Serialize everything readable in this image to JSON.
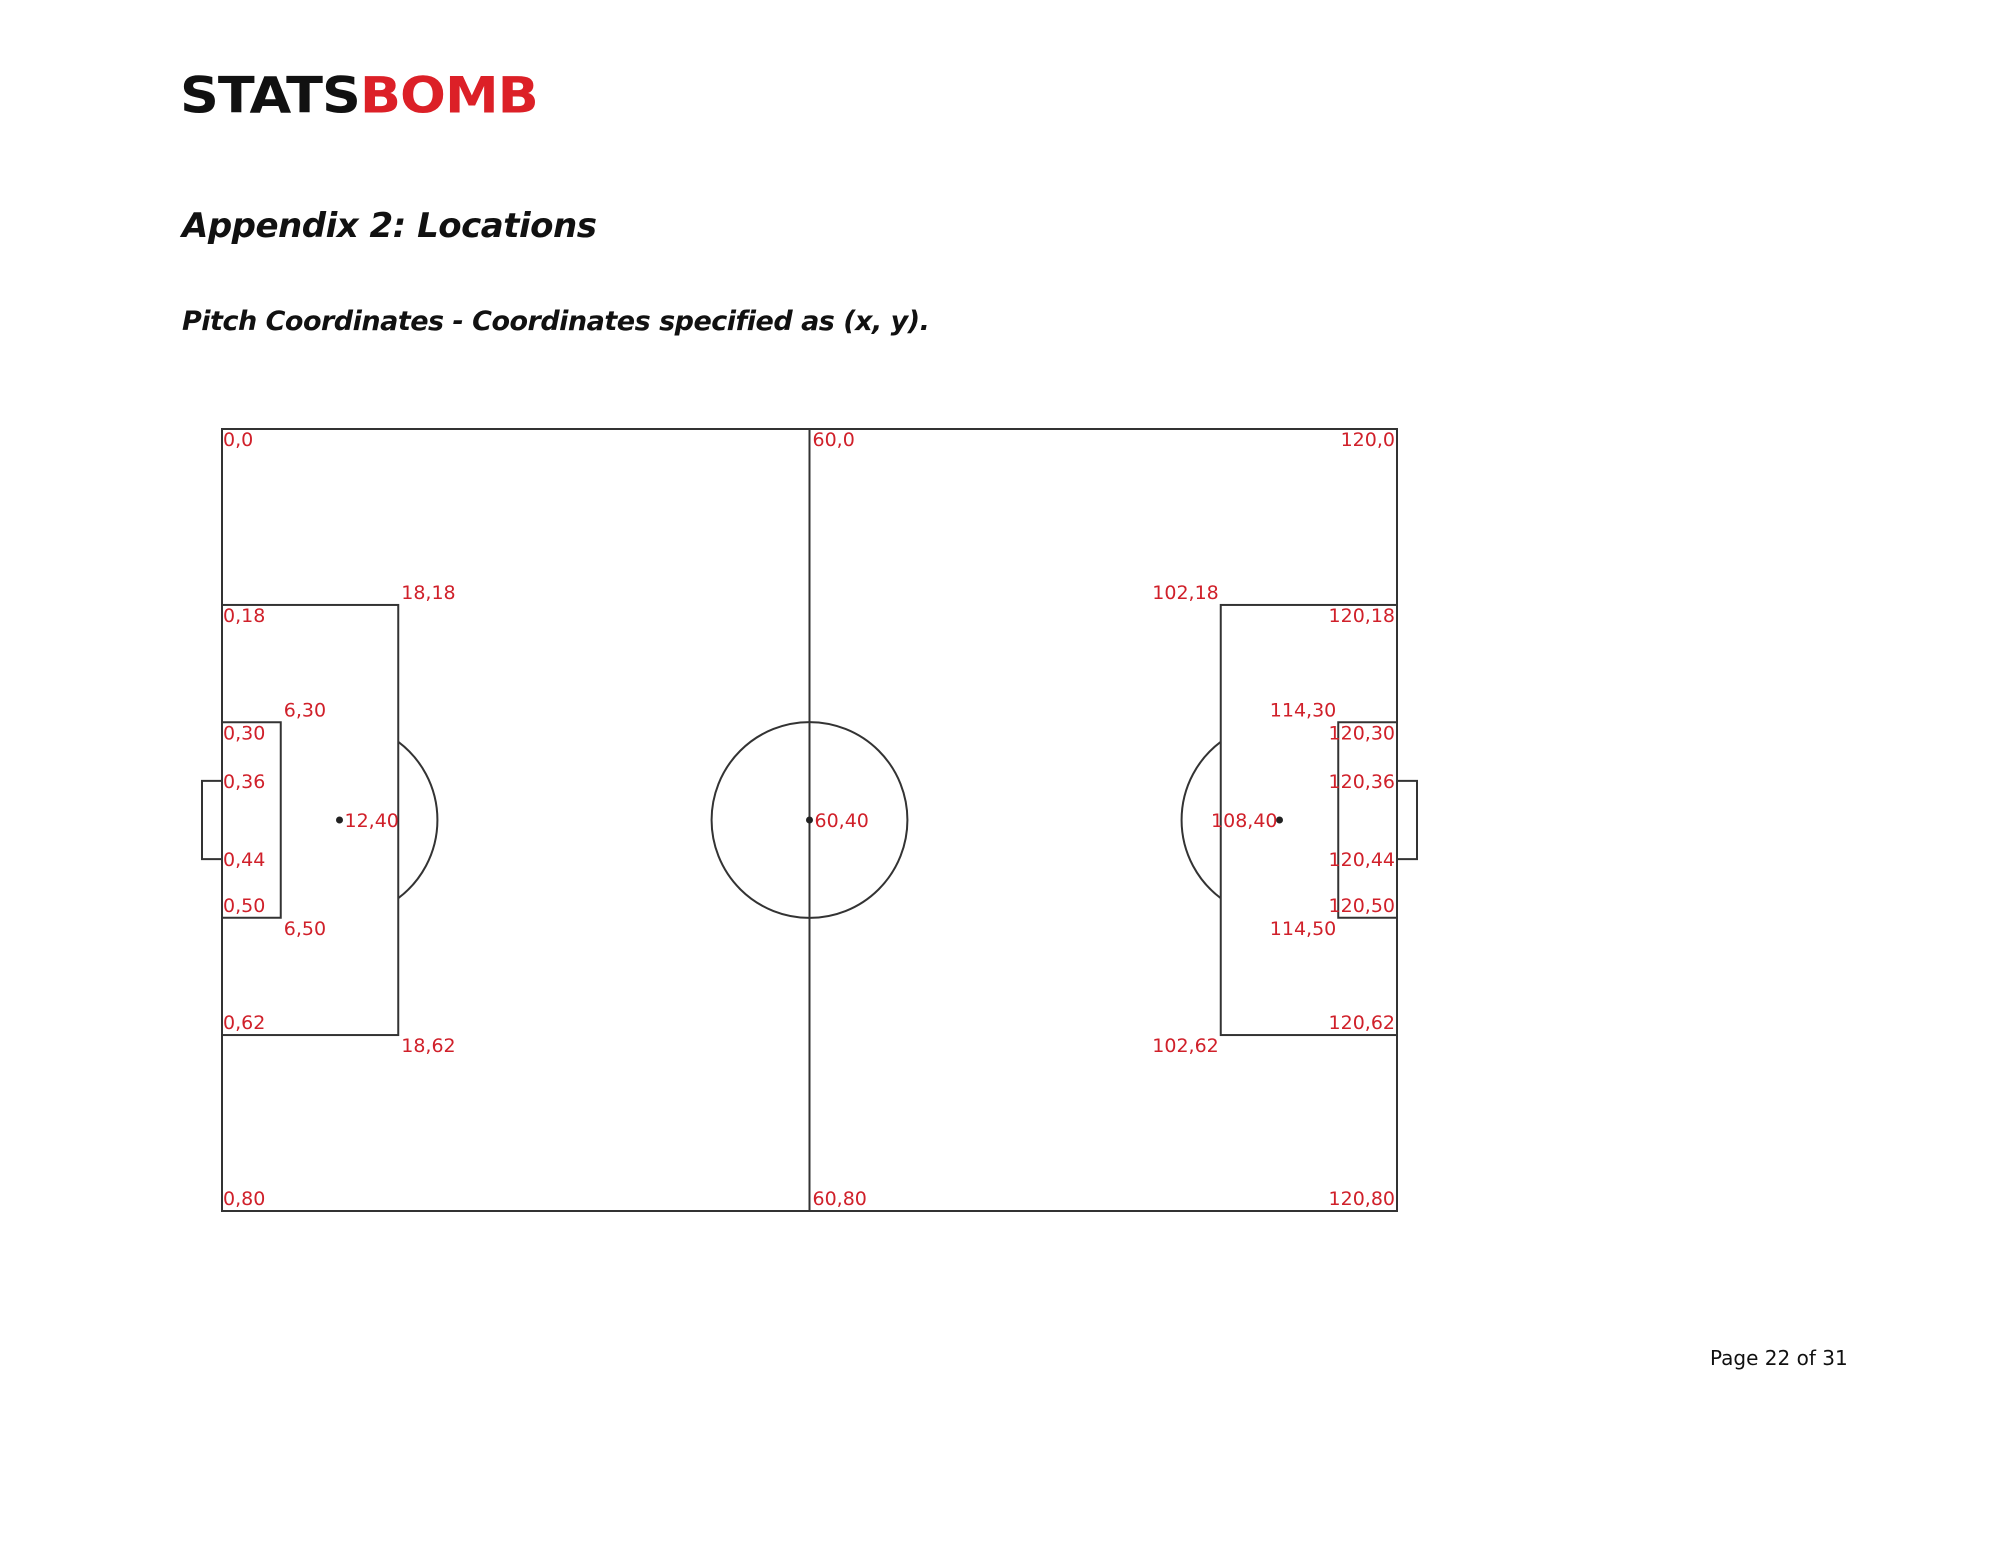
{
  "logo": {
    "part1": "STATS",
    "part2": "BOMB",
    "text_color": "#111111",
    "accent_color": "#dc2027"
  },
  "heading": "Appendix 2: Locations",
  "subheading": "Pitch Coordinates - Coordinates specified as (x, y).",
  "footer": {
    "page_label": "Page 22 of 31"
  },
  "chart_data": {
    "type": "diagram",
    "x_range": [
      0,
      120
    ],
    "y_range": [
      0,
      80
    ],
    "label_color": "#d0202a",
    "line_color": "#333333",
    "points": [
      {
        "text": "0,0",
        "x": 0,
        "y": 0,
        "anchor": "start",
        "pos": "below"
      },
      {
        "text": "60,0",
        "x": 60,
        "y": 0,
        "anchor": "start",
        "pos": "below"
      },
      {
        "text": "120,0",
        "x": 120,
        "y": 0,
        "anchor": "end",
        "pos": "below"
      },
      {
        "text": "18,18",
        "x": 18,
        "y": 18,
        "anchor": "start",
        "pos": "above"
      },
      {
        "text": "0,18",
        "x": 0,
        "y": 18,
        "anchor": "start",
        "pos": "below"
      },
      {
        "text": "102,18",
        "x": 102,
        "y": 18,
        "anchor": "end",
        "pos": "above"
      },
      {
        "text": "120,18",
        "x": 120,
        "y": 18,
        "anchor": "end",
        "pos": "below"
      },
      {
        "text": "6,30",
        "x": 6,
        "y": 30,
        "anchor": "start",
        "pos": "above"
      },
      {
        "text": "0,30",
        "x": 0,
        "y": 30,
        "anchor": "start",
        "pos": "below"
      },
      {
        "text": "114,30",
        "x": 114,
        "y": 30,
        "anchor": "end",
        "pos": "above"
      },
      {
        "text": "120,30",
        "x": 120,
        "y": 30,
        "anchor": "end",
        "pos": "below"
      },
      {
        "text": "0,36",
        "x": 0,
        "y": 36,
        "anchor": "start",
        "pos": "middle"
      },
      {
        "text": "120,36",
        "x": 120,
        "y": 36,
        "anchor": "end",
        "pos": "middle"
      },
      {
        "text": "12,40",
        "x": 12,
        "y": 40,
        "anchor": "start",
        "pos": "middle"
      },
      {
        "text": "60,40",
        "x": 60,
        "y": 40,
        "anchor": "start",
        "pos": "middle"
      },
      {
        "text": "108,40",
        "x": 108,
        "y": 40,
        "anchor": "end",
        "pos": "middle"
      },
      {
        "text": "0,44",
        "x": 0,
        "y": 44,
        "anchor": "start",
        "pos": "middle"
      },
      {
        "text": "120,44",
        "x": 120,
        "y": 44,
        "anchor": "end",
        "pos": "middle"
      },
      {
        "text": "0,50",
        "x": 0,
        "y": 50,
        "anchor": "start",
        "pos": "above"
      },
      {
        "text": "120,50",
        "x": 120,
        "y": 50,
        "anchor": "end",
        "pos": "above"
      },
      {
        "text": "6,50",
        "x": 6,
        "y": 50,
        "anchor": "start",
        "pos": "below"
      },
      {
        "text": "114,50",
        "x": 114,
        "y": 50,
        "anchor": "end",
        "pos": "below"
      },
      {
        "text": "0,62",
        "x": 0,
        "y": 62,
        "anchor": "start",
        "pos": "above"
      },
      {
        "text": "120,62",
        "x": 120,
        "y": 62,
        "anchor": "end",
        "pos": "above"
      },
      {
        "text": "18,62",
        "x": 18,
        "y": 62,
        "anchor": "start",
        "pos": "below"
      },
      {
        "text": "102,62",
        "x": 102,
        "y": 62,
        "anchor": "end",
        "pos": "below"
      },
      {
        "text": "0,80",
        "x": 0,
        "y": 80,
        "anchor": "start",
        "pos": "above"
      },
      {
        "text": "60,80",
        "x": 60,
        "y": 80,
        "anchor": "start",
        "pos": "above"
      },
      {
        "text": "120,80",
        "x": 120,
        "y": 80,
        "anchor": "end",
        "pos": "above"
      }
    ],
    "spots": [
      {
        "x": 12,
        "y": 40
      },
      {
        "x": 60,
        "y": 40
      },
      {
        "x": 108,
        "y": 40
      }
    ],
    "features": {
      "penalty_area": {
        "depth": 18,
        "y_from": 18,
        "y_to": 62
      },
      "six_yard_box": {
        "depth": 6,
        "y_from": 30,
        "y_to": 50
      },
      "goal": {
        "y_from": 36,
        "y_to": 44
      },
      "centre_circle_radius": 10,
      "penalty_arc_radius": 10
    }
  }
}
